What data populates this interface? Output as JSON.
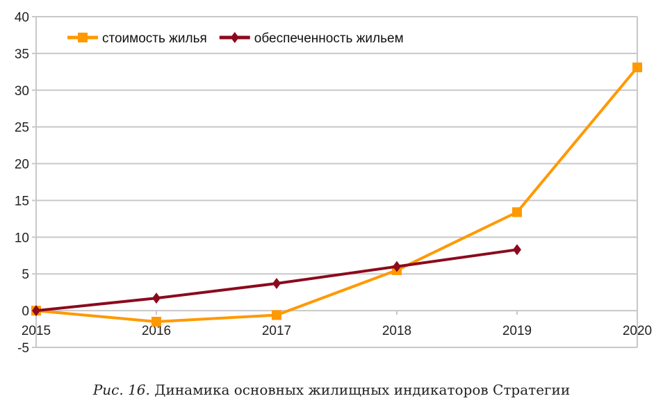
{
  "chart_data": {
    "type": "line",
    "title": "",
    "xlabel": "",
    "ylabel": "",
    "categories": [
      "2015",
      "2016",
      "2017",
      "2018",
      "2019",
      "2020"
    ],
    "ylim": [
      -5,
      40
    ],
    "yticks": [
      -5,
      0,
      5,
      10,
      15,
      20,
      25,
      30,
      35,
      40
    ],
    "grid": true,
    "legend_position": "top-left",
    "series": [
      {
        "name": "стоимость жилья",
        "color": "#ff9900",
        "marker": "square",
        "values": [
          0,
          -1.5,
          -0.6,
          5.5,
          13.4,
          33.1
        ]
      },
      {
        "name": "обеспеченность жильем",
        "color": "#8b0a1e",
        "marker": "diamond",
        "values": [
          0,
          1.7,
          3.7,
          6.0,
          8.3,
          null
        ]
      }
    ]
  },
  "caption": {
    "label": "Рис. 16.",
    "text": " Динамика основных жилищных индикаторов Стратегии"
  }
}
